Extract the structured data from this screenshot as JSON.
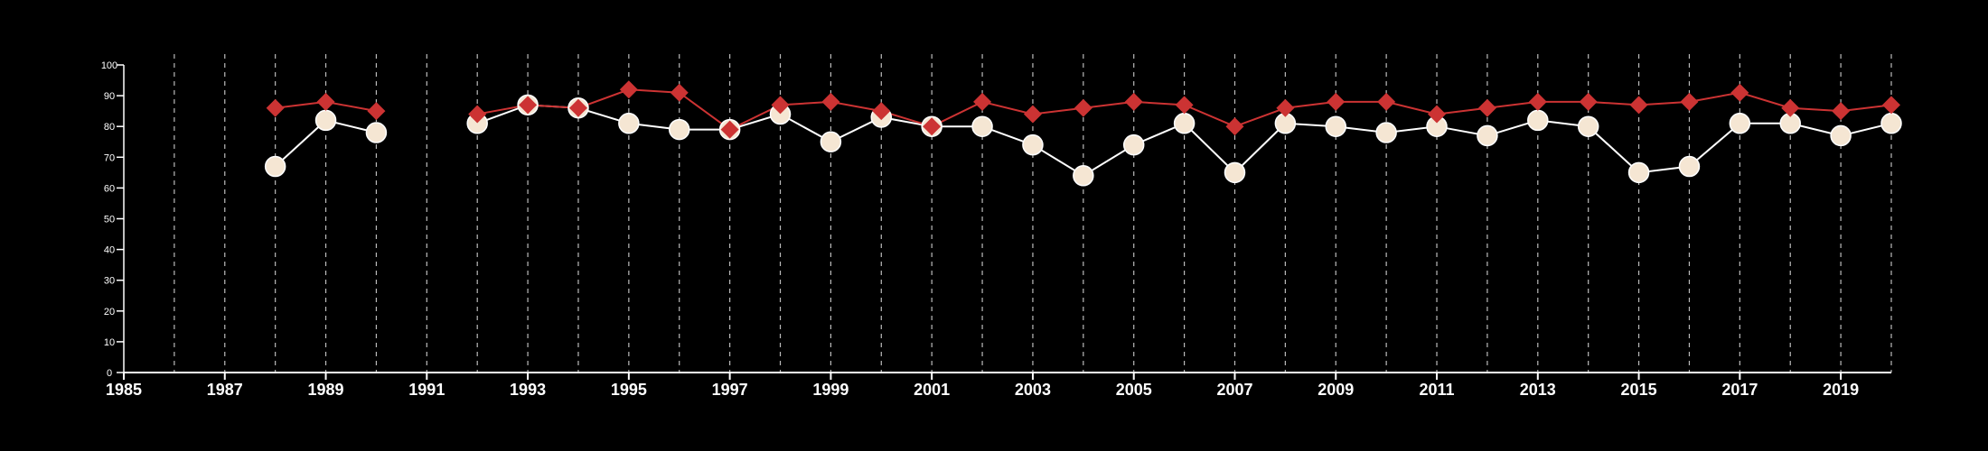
{
  "chart_data": {
    "type": "line",
    "title": "",
    "xlabel": "",
    "ylabel": "",
    "xlim": [
      1985,
      2020
    ],
    "ylim": [
      0,
      100
    ],
    "y_ticks": [
      "0",
      "10",
      "20",
      "30",
      "40",
      "50",
      "60",
      "70",
      "80",
      "90",
      "100"
    ],
    "x_ticks": [
      "1985",
      "1987",
      "1989",
      "1991",
      "1993",
      "1995",
      "1997",
      "1999",
      "2001",
      "2003",
      "2005",
      "2007",
      "2009",
      "2011",
      "2013",
      "2015",
      "2017",
      "2019"
    ],
    "vertical_grid": "dashed, every year",
    "legend": "none",
    "series": [
      {
        "marker": "circle",
        "color": "#f5e6d3",
        "points": [
          [
            [
              1988,
              67
            ],
            [
              1989,
              82
            ],
            [
              1990,
              78
            ]
          ],
          [
            [
              1992,
              81
            ],
            [
              1993,
              87
            ],
            [
              1994,
              86
            ],
            [
              1995,
              81
            ],
            [
              1996,
              79
            ],
            [
              1997,
              79
            ],
            [
              1998,
              84
            ],
            [
              1999,
              75
            ],
            [
              2000,
              83
            ],
            [
              2001,
              80
            ],
            [
              2002,
              80
            ],
            [
              2003,
              74
            ],
            [
              2004,
              64
            ],
            [
              2005,
              74
            ],
            [
              2006,
              81
            ],
            [
              2007,
              65
            ],
            [
              2008,
              81
            ],
            [
              2009,
              80
            ],
            [
              2010,
              78
            ],
            [
              2011,
              80
            ],
            [
              2012,
              77
            ],
            [
              2013,
              82
            ],
            [
              2014,
              80
            ],
            [
              2015,
              65
            ],
            [
              2016,
              67
            ],
            [
              2017,
              81
            ],
            [
              2018,
              81
            ],
            [
              2019,
              77
            ],
            [
              2020,
              81
            ]
          ]
        ]
      },
      {
        "marker": "diamond",
        "color": "#cc3333",
        "points": [
          [
            [
              1988,
              86
            ],
            [
              1989,
              88
            ],
            [
              1990,
              85
            ]
          ],
          [
            [
              1992,
              84
            ],
            [
              1993,
              87
            ],
            [
              1994,
              86
            ],
            [
              1995,
              92
            ],
            [
              1996,
              91
            ],
            [
              1997,
              79
            ],
            [
              1998,
              87
            ],
            [
              1999,
              88
            ],
            [
              2000,
              85
            ],
            [
              2001,
              80
            ],
            [
              2002,
              88
            ],
            [
              2003,
              84
            ],
            [
              2004,
              86
            ],
            [
              2005,
              88
            ],
            [
              2006,
              87
            ],
            [
              2007,
              80
            ],
            [
              2008,
              86
            ],
            [
              2009,
              88
            ],
            [
              2010,
              88
            ],
            [
              2011,
              84
            ],
            [
              2012,
              86
            ],
            [
              2013,
              88
            ],
            [
              2014,
              88
            ],
            [
              2015,
              87
            ],
            [
              2016,
              88
            ],
            [
              2017,
              91
            ],
            [
              2018,
              86
            ],
            [
              2019,
              85
            ],
            [
              2020,
              87
            ]
          ]
        ]
      }
    ]
  }
}
